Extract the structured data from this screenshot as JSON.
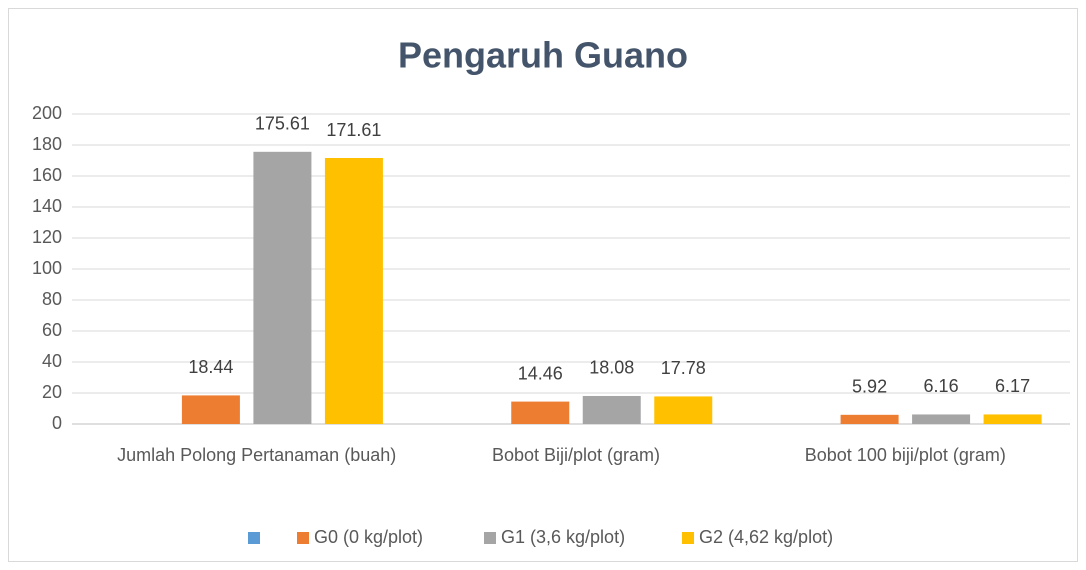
{
  "chart_data": {
    "type": "bar",
    "title": "Pengaruh Guano",
    "categories": [
      "Jumlah Polong Pertanaman (buah)",
      "Bobot Biji/plot (gram)",
      "Bobot 100 biji/plot (gram)"
    ],
    "series": [
      {
        "color": "#5b9bd5",
        "values": [
          null,
          null,
          null
        ]
      },
      {
        "name": "G0 (0 kg/plot)",
        "color": "#ed7d31",
        "values": [
          18.44,
          14.46,
          5.92
        ]
      },
      {
        "name": "G1 (3,6 kg/plot)",
        "color": "#a5a5a5",
        "values": [
          175.61,
          18.08,
          6.16
        ]
      },
      {
        "name": "G2 (4,62 kg/plot)",
        "color": "#ffc000",
        "values": [
          171.61,
          17.78,
          6.17
        ]
      }
    ],
    "ylim": [
      0,
      200
    ],
    "yticks": [
      0,
      20,
      40,
      60,
      80,
      100,
      120,
      140,
      160,
      180,
      200
    ],
    "grid": true,
    "legend": "bottom"
  }
}
